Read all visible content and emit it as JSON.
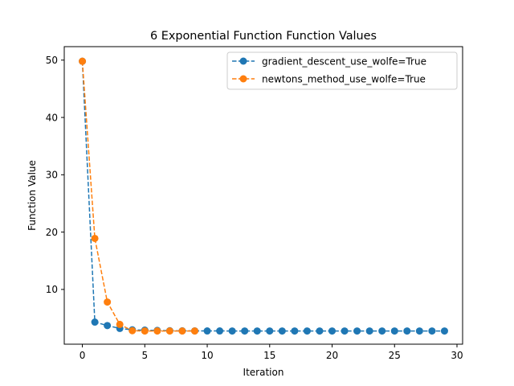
{
  "chart_data": {
    "type": "line",
    "title": "6 Exponential Function Function Values",
    "xlabel": "Iteration",
    "ylabel": "Function Value",
    "xlim": [
      -1.45,
      30.45
    ],
    "ylim": [
      0.45,
      52.35
    ],
    "xticks": [
      0,
      5,
      10,
      15,
      20,
      25,
      30
    ],
    "yticks": [
      10,
      20,
      30,
      40,
      50
    ],
    "grid": false,
    "legend_position": "top-right",
    "series": [
      {
        "name": "gradient_descent_use_wolfe=True",
        "color": "#1f77b4",
        "line_style": "dashed",
        "marker": "circle",
        "x": [
          0,
          1,
          2,
          3,
          4,
          5,
          6,
          7,
          8,
          9,
          10,
          11,
          12,
          13,
          14,
          15,
          16,
          17,
          18,
          19,
          20,
          21,
          22,
          23,
          24,
          25,
          26,
          27,
          28,
          29
        ],
        "y": [
          49.8,
          4.3,
          3.7,
          3.2,
          2.95,
          2.9,
          2.85,
          2.8,
          2.78,
          2.77,
          2.76,
          2.76,
          2.75,
          2.75,
          2.75,
          2.75,
          2.75,
          2.75,
          2.75,
          2.75,
          2.75,
          2.75,
          2.75,
          2.75,
          2.75,
          2.75,
          2.75,
          2.75,
          2.75,
          2.75
        ]
      },
      {
        "name": "newtons_method_use_wolfe=True",
        "color": "#ff7f0e",
        "line_style": "dashed",
        "marker": "circle",
        "x": [
          0,
          1,
          2,
          3,
          4,
          5,
          6,
          7,
          8,
          9
        ],
        "y": [
          49.8,
          18.9,
          7.8,
          3.9,
          2.8,
          2.75,
          2.75,
          2.75,
          2.75,
          2.75
        ]
      }
    ]
  }
}
